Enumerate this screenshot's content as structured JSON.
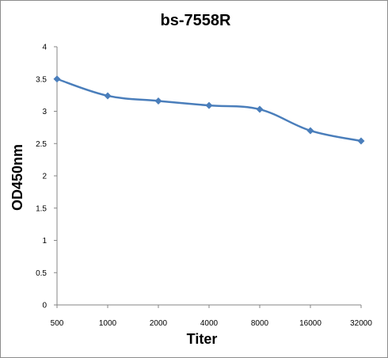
{
  "chart_data": {
    "type": "line",
    "title": "bs-7558R",
    "xlabel": "Titer",
    "ylabel": "OD450nm",
    "categories": [
      "500",
      "1000",
      "2000",
      "4000",
      "8000",
      "16000",
      "32000"
    ],
    "series": [
      {
        "values": [
          3.5,
          3.24,
          3.16,
          3.09,
          3.03,
          2.7,
          2.54
        ]
      }
    ],
    "ylim": [
      0,
      4
    ],
    "yticks": [
      "0",
      "0.5",
      "1",
      "1.5",
      "2",
      "2.5",
      "3",
      "3.5",
      "4"
    ],
    "grid": false,
    "legend": "none",
    "colors": {
      "line": "#4a7ebb",
      "axis": "#868686"
    }
  }
}
